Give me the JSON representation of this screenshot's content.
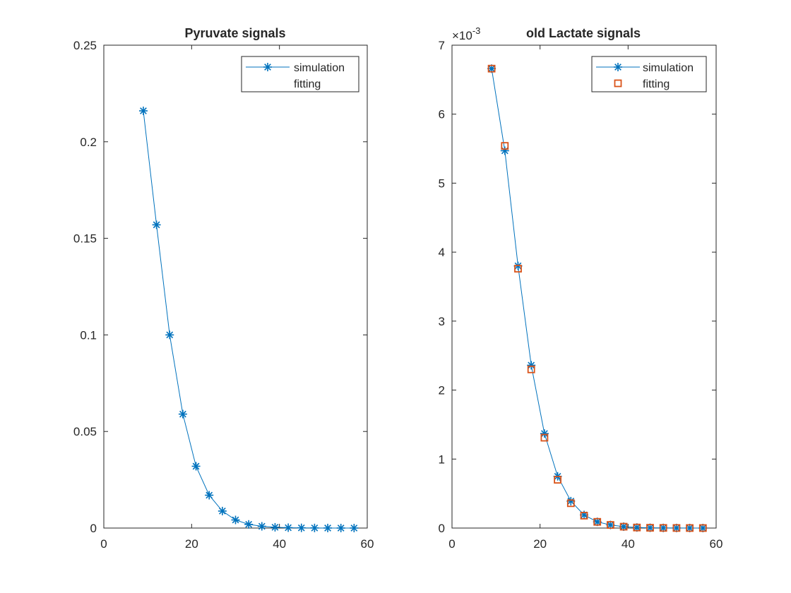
{
  "chart_data": [
    {
      "type": "line",
      "title": "Pyruvate signals",
      "xlabel": "",
      "ylabel": "",
      "xlim": [
        0,
        60
      ],
      "ylim": [
        0,
        0.25
      ],
      "xticks": [
        0,
        20,
        40,
        60
      ],
      "xtick_labels": [
        "0",
        "20",
        "40",
        "60"
      ],
      "yticks": [
        0,
        0.05,
        0.1,
        0.15,
        0.2,
        0.25
      ],
      "ytick_labels": [
        "0",
        "0.05",
        "0.1",
        "0.15",
        "0.2",
        "0.25"
      ],
      "y_exponent_label": "",
      "grid": false,
      "legend_position": "top-right",
      "series": [
        {
          "name": "simulation",
          "style": "line-star",
          "color": "#0072BD",
          "x": [
            9,
            12,
            15,
            18,
            21,
            24,
            27,
            30,
            33,
            36,
            39,
            42,
            45,
            48,
            51,
            54,
            57
          ],
          "y": [
            0.216,
            0.157,
            0.1,
            0.059,
            0.032,
            0.017,
            0.0088,
            0.0042,
            0.0019,
            0.0009,
            0.0004,
            0.0002,
            0.0001,
            5e-05,
            2e-05,
            1e-05,
            5e-06
          ]
        },
        {
          "name": "fitting",
          "style": "none",
          "color": "#D95319",
          "x": [],
          "y": []
        }
      ]
    },
    {
      "type": "line",
      "title": "old Lactate signals",
      "xlabel": "",
      "ylabel": "",
      "xlim": [
        0,
        60
      ],
      "ylim": [
        0,
        7
      ],
      "xticks": [
        0,
        20,
        40,
        60
      ],
      "xtick_labels": [
        "0",
        "20",
        "40",
        "60"
      ],
      "yticks": [
        0,
        1,
        2,
        3,
        4,
        5,
        6,
        7
      ],
      "ytick_labels": [
        "0",
        "1",
        "2",
        "3",
        "4",
        "5",
        "6",
        "7"
      ],
      "y_exponent_label": "×10",
      "y_exponent_power": "-3",
      "grid": false,
      "legend_position": "top-right",
      "series": [
        {
          "name": "simulation",
          "style": "line-star",
          "color": "#0072BD",
          "x": [
            9,
            12,
            15,
            18,
            21,
            24,
            27,
            30,
            33,
            36,
            39,
            42,
            45,
            48,
            51,
            54,
            57
          ],
          "y": [
            6.66,
            5.47,
            3.8,
            2.36,
            1.37,
            0.75,
            0.39,
            0.19,
            0.09,
            0.045,
            0.02,
            0.008,
            0.004,
            0.002,
            0.001,
            0.0005,
            0.0002
          ]
        },
        {
          "name": "fitting",
          "style": "square",
          "color": "#D95319",
          "x": [
            9,
            12,
            15,
            18,
            21,
            24,
            27,
            30,
            33,
            36,
            39,
            42,
            45,
            48,
            51,
            54,
            57
          ],
          "y": [
            6.66,
            5.54,
            3.76,
            2.3,
            1.31,
            0.7,
            0.36,
            0.18,
            0.09,
            0.045,
            0.02,
            0.008,
            0.004,
            0.002,
            0.001,
            0.0005,
            0.0002
          ]
        }
      ]
    }
  ]
}
